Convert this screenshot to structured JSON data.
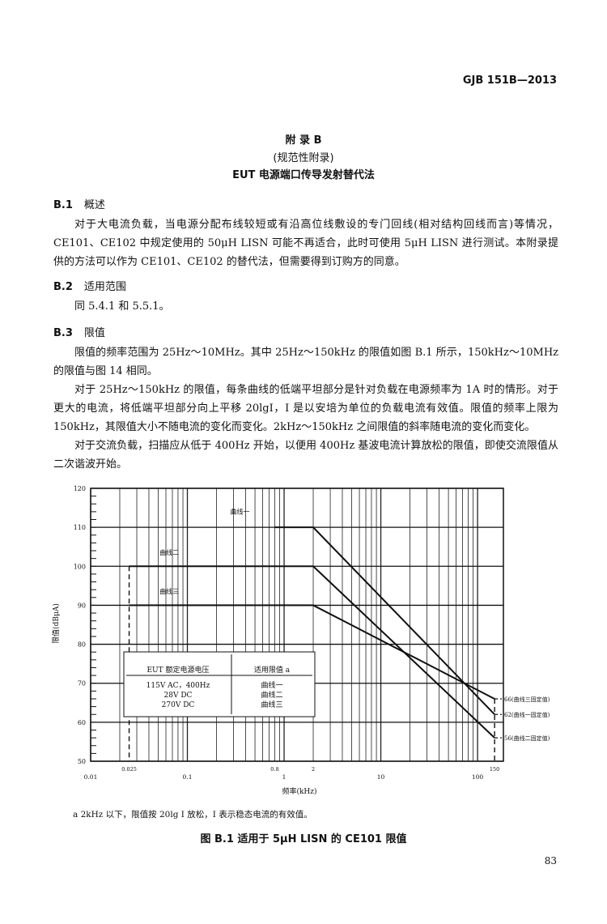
{
  "header": {
    "doc_id": "GJB 151B—2013"
  },
  "title": {
    "annex": "附 录 B",
    "type": "(规范性附录)",
    "name": "EUT 电源端口传导发射替代法"
  },
  "sections": [
    {
      "num": "B.1",
      "heading": "概述",
      "paragraphs": [
        "对于大电流负载，当电源分配布线较短或有沿高位线敷设的专门回线(相对结构回线而言)等情况，CE101、CE102 中规定使用的 50μH LISN 可能不再适合，此时可使用 5μH LISN 进行测试。本附录提供的方法可以作为 CE101、CE102 的替代法，但需要得到订购方的同意。"
      ]
    },
    {
      "num": "B.2",
      "heading": "适用范围",
      "paragraphs": [
        "同 5.4.1 和 5.5.1。"
      ]
    },
    {
      "num": "B.3",
      "heading": "限值",
      "paragraphs": [
        "限值的频率范围为 25Hz～10MHz。其中 25Hz～150kHz 的限值如图 B.1 所示，150kHz～10MHz 的限值与图 14 相同。",
        "对于 25Hz～150kHz 的限值，每条曲线的低端平坦部分是针对负载在电源频率为 1A 时的情形。对于更大的电流，将低端平坦部分向上平移 20lgI，I 是以安培为单位的负载电流有效值。限值的频率上限为 150kHz，其限值大小不随电流的变化而变化。2kHz～150kHz 之间限值的斜率随电流的变化而变化。",
        "对于交流负载，扫描应从低于 400Hz 开始，以便用 400Hz 基波电流计算放松的限值，即使交流限值从二次谐波开始。"
      ]
    }
  ],
  "chart_data": {
    "type": "line",
    "xlabel": "频率(kHz)",
    "ylabel": "限值(dBμA)",
    "xscale": "log",
    "xlim": [
      0.01,
      185
    ],
    "ylim": [
      50,
      120
    ],
    "grid": true,
    "yticks": [
      50,
      60,
      70,
      80,
      90,
      100,
      110,
      120
    ],
    "xticks_major": [
      "0.01",
      "0.1",
      "1",
      "10",
      "100"
    ],
    "xticks_marked": [
      "0.025",
      "0.8",
      "2",
      "150"
    ],
    "series": [
      {
        "name": "曲线一",
        "x": [
          0.8,
          2,
          150
        ],
        "y": [
          110,
          110,
          62
        ],
        "end_label": "62(曲线一固定值)"
      },
      {
        "name": "曲线二",
        "x": [
          0.025,
          2,
          150
        ],
        "y": [
          100,
          100,
          56
        ],
        "end_label": "56(曲线二固定值)"
      },
      {
        "name": "曲线三",
        "x": [
          0.025,
          2,
          150
        ],
        "y": [
          90,
          90,
          66
        ],
        "end_label": "66(曲线三固定值)"
      }
    ],
    "inset_table": {
      "headers": [
        "EUT 额定电源电压",
        "适用限值 a"
      ],
      "rows": [
        [
          "115V AC，400Hz",
          "曲线一"
        ],
        [
          "28V DC",
          "曲线二"
        ],
        [
          "270V DC",
          "曲线三"
        ]
      ]
    }
  },
  "footnote": "a  2kHz 以下，限值按 20lg I 放松，I 表示稳态电流的有效值。",
  "caption": "图 B.1  适用于 5μH LISN 的 CE101 限值",
  "page_number": "83"
}
